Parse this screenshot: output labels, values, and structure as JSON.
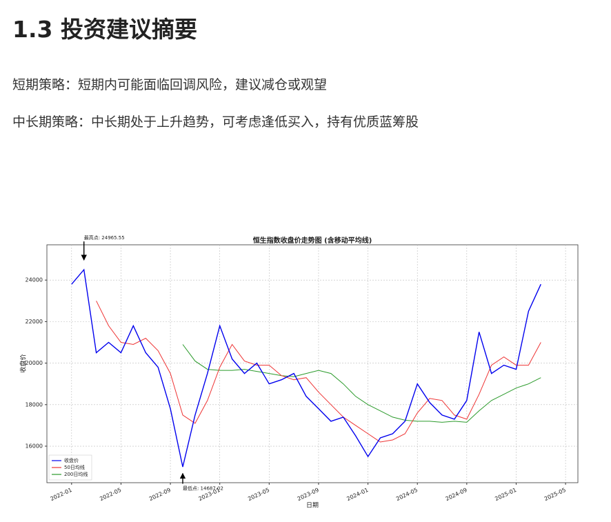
{
  "heading": "1.3 投资建议摘要",
  "paragraphs": [
    "短期策略：短期内可能面临回调风险，建议减仓或观望",
    "中长期策略：中长期处于上升趋势，可考虑逢低买入，持有优质蓝筹股"
  ],
  "chart_data": {
    "type": "line",
    "title": "恒生指数收盘价走势图 (含移动平均线)",
    "x_label": "日期",
    "y_label": "收盘价",
    "x": [
      "2022-01",
      "2022-02",
      "2022-03",
      "2022-04",
      "2022-05",
      "2022-06",
      "2022-07",
      "2022-08",
      "2022-09",
      "2022-10",
      "2022-11",
      "2022-12",
      "2023-01",
      "2023-02",
      "2023-03",
      "2023-04",
      "2023-05",
      "2023-06",
      "2023-07",
      "2023-08",
      "2023-09",
      "2023-10",
      "2023-11",
      "2023-12",
      "2024-01",
      "2024-02",
      "2024-03",
      "2024-04",
      "2024-05",
      "2024-06",
      "2024-07",
      "2024-08",
      "2024-09",
      "2024-10",
      "2024-11",
      "2024-12",
      "2025-01",
      "2025-02",
      "2025-03"
    ],
    "series": [
      {
        "name": "收盘价",
        "color": "#0000ee",
        "values": [
          23800,
          24500,
          20500,
          21000,
          20500,
          21800,
          20500,
          19800,
          17800,
          15000,
          17500,
          19500,
          21800,
          20200,
          19500,
          20000,
          19000,
          19200,
          19500,
          18400,
          17800,
          17200,
          17400,
          16500,
          15500,
          16400,
          16600,
          17200,
          19000,
          18100,
          17500,
          17300,
          18200,
          21500,
          19500,
          19900,
          19700,
          22500,
          23800
        ]
      },
      {
        "name": "50日均线",
        "color": "#ee3333",
        "values": [
          null,
          null,
          23000,
          21800,
          21000,
          20900,
          21200,
          20600,
          19500,
          17500,
          17100,
          18200,
          19800,
          20900,
          20100,
          19900,
          19900,
          19400,
          19200,
          19300,
          18600,
          18000,
          17400,
          17000,
          16600,
          16200,
          16300,
          16600,
          17600,
          18300,
          18200,
          17500,
          17300,
          18500,
          19900,
          20300,
          19900,
          19900,
          21000
        ]
      },
      {
        "name": "200日均线",
        "color": "#2a9a2a",
        "values": [
          null,
          null,
          null,
          null,
          null,
          null,
          null,
          null,
          null,
          20900,
          20100,
          19700,
          19650,
          19650,
          19700,
          19600,
          19500,
          19400,
          19350,
          19500,
          19650,
          19500,
          19000,
          18400,
          18000,
          17700,
          17400,
          17250,
          17200,
          17200,
          17150,
          17200,
          17150,
          17700,
          18200,
          18500,
          18800,
          19000,
          19300
        ]
      }
    ],
    "annotations": [
      {
        "text": "最高点: 24965.55",
        "x": "2022-02",
        "y": 24965.55
      },
      {
        "text": "最低点: 14687.02",
        "x": "2022-10",
        "y": 14687.02
      }
    ],
    "xlim": [
      "2021-11",
      "2025-06"
    ],
    "xticks": [
      "2022-01",
      "2022-05",
      "2022-09",
      "2023-01",
      "2023-05",
      "2023-09",
      "2024-01",
      "2024-05",
      "2024-09",
      "2025-01",
      "2025-05"
    ],
    "ylim": [
      14240,
      25700
    ],
    "yticks": [
      16000,
      18000,
      20000,
      22000,
      24000
    ],
    "grid": true,
    "legend": "lower-left"
  }
}
